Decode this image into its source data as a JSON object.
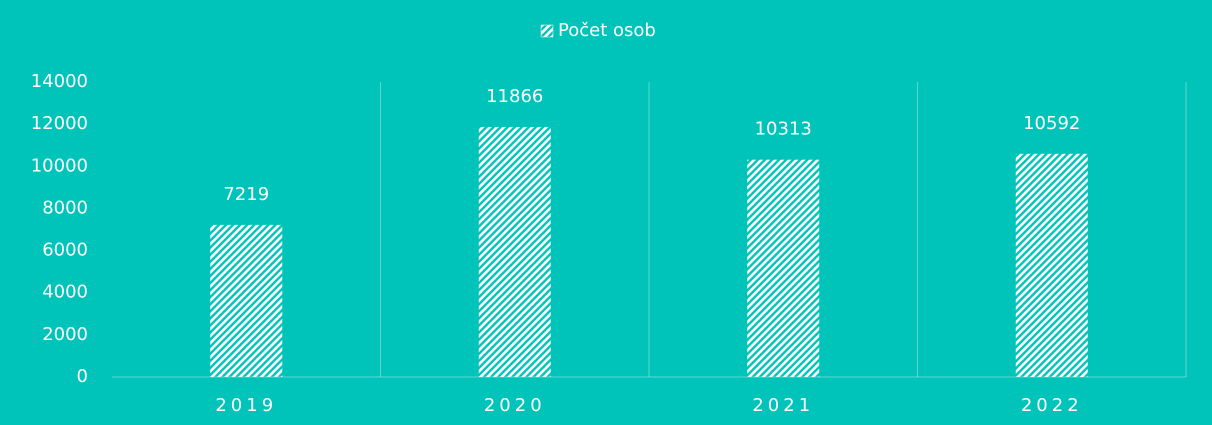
{
  "chart_data": {
    "type": "bar",
    "categories": [
      "2019",
      "2020",
      "2021",
      "2022"
    ],
    "series": [
      {
        "name": "Počet osob",
        "color": "#ffffff",
        "values": [
          7219,
          11866,
          10313,
          10592
        ]
      }
    ],
    "ylim": [
      0,
      14000
    ],
    "yticks": [
      0,
      2000,
      4000,
      6000,
      8000,
      10000,
      12000,
      14000
    ],
    "background": "#00c4b9",
    "legend": "top",
    "data_labels": true
  }
}
